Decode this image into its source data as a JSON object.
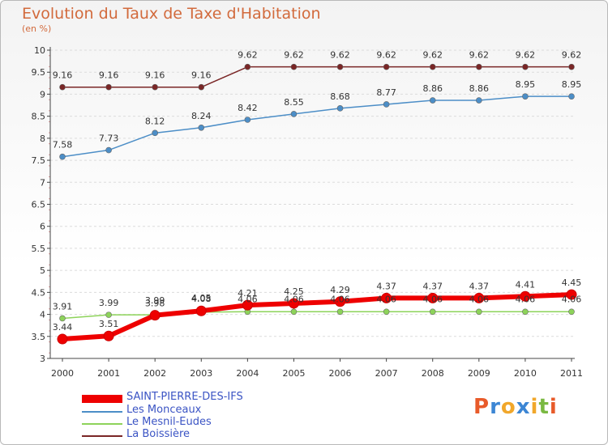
{
  "chart_data": {
    "type": "line",
    "title": "Evolution du Taux de Taxe d'Habitation",
    "subtitle": "(en %)",
    "x": [
      "2000",
      "2001",
      "2002",
      "2003",
      "2004",
      "2005",
      "2006",
      "2007",
      "2008",
      "2009",
      "2010",
      "2011"
    ],
    "yticks": [
      "3",
      "3.5",
      "4",
      "4.5",
      "5",
      "5.5",
      "6",
      "6.5",
      "7",
      "7.5",
      "8",
      "8.5",
      "9",
      "9.5",
      "10"
    ],
    "ylim": [
      3,
      10
    ],
    "grid": "horizontal-dashed",
    "legend_position": "bottom-left",
    "series": [
      {
        "name": "La Boissière",
        "color": "#7a2626",
        "values": [
          9.16,
          9.16,
          9.16,
          9.16,
          9.62,
          9.62,
          9.62,
          9.62,
          9.62,
          9.62,
          9.62,
          9.62
        ],
        "labels": [
          "9.16",
          "9.16",
          "9.16",
          "9.16",
          "9.62",
          "9.62",
          "9.62",
          "9.62",
          "9.62",
          "9.62",
          "9.62",
          "9.62"
        ]
      },
      {
        "name": "Les Monceaux",
        "color": "#4c8ec7",
        "values": [
          7.58,
          7.73,
          8.12,
          8.24,
          8.42,
          8.55,
          8.68,
          8.77,
          8.86,
          8.86,
          8.95,
          8.95
        ],
        "labels": [
          "7.58",
          "7.73",
          "8.12",
          "8.24",
          "8.42",
          "8.55",
          "8.68",
          "8.77",
          "8.86",
          "8.86",
          "8.95",
          "8.95"
        ]
      },
      {
        "name": "Le Mesnil-Eudes",
        "color": "#8dd35a",
        "values": [
          3.91,
          3.99,
          3.99,
          4.05,
          4.06,
          4.06,
          4.06,
          4.06,
          4.06,
          4.06,
          4.06,
          4.06
        ],
        "labels": [
          "3.91",
          "3.99",
          "3.99",
          "4.05",
          "4.06",
          "4.06",
          "4.06",
          "4.06",
          "4.06",
          "4.06",
          "4.06",
          "4.06"
        ]
      },
      {
        "name": "SAINT-PIERRE-DES-IFS",
        "color": "#ee0000",
        "values": [
          3.44,
          3.51,
          3.98,
          4.08,
          4.21,
          4.25,
          4.29,
          4.37,
          4.37,
          4.37,
          4.41,
          4.45
        ],
        "labels": [
          "3.44",
          "3.51",
          "3.98",
          "4.08",
          "4.21",
          "4.25",
          "4.29",
          "4.37",
          "4.37",
          "4.37",
          "4.41",
          "4.45"
        ]
      }
    ]
  },
  "legend": [
    {
      "label": "SAINT-PIERRE-DES-IFS",
      "color": "#ee0000"
    },
    {
      "label": "Les Monceaux",
      "color": "#4c8ec7"
    },
    {
      "label": "Le Mesnil-Eudes",
      "color": "#8dd35a"
    },
    {
      "label": "La Boissière",
      "color": "#7a2626"
    }
  ],
  "logo": {
    "letters": [
      "P",
      "r",
      "o",
      "x",
      "i",
      "t",
      "i"
    ],
    "colors": [
      "#e85b2a",
      "#3c86d4",
      "#f1a72b",
      "#3c86d4",
      "#f1a72b",
      "#7ab942",
      "#e85b2a"
    ]
  }
}
